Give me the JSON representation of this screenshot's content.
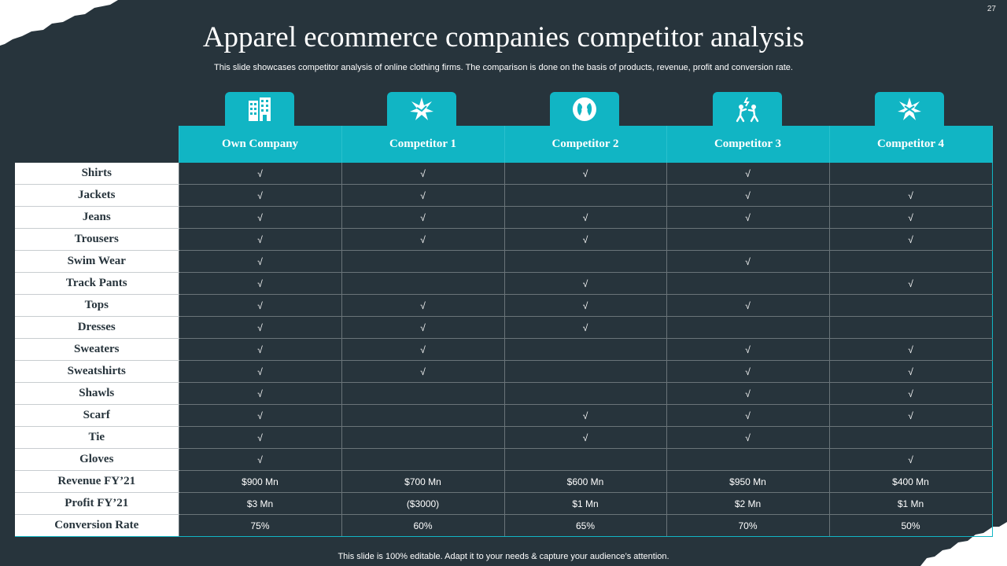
{
  "slide": {
    "number": "27",
    "title": "Apparel ecommerce companies competitor analysis",
    "subtitle": "This slide showcases competitor analysis of online clothing firms. The comparison is done on the basis of products, revenue, profit and conversion rate.",
    "footer": "This slide is 100% editable. Adapt it to your needs & capture your audience’s attention."
  },
  "colors": {
    "background": "#27343c",
    "accent": "#11b5c4",
    "label_bg": "#ffffff"
  },
  "columns": [
    {
      "label": "Own Company",
      "icon": "office-building-icon"
    },
    {
      "label": "Competitor 1",
      "icon": "starburst-icon"
    },
    {
      "label": "Competitor 2",
      "icon": "faces-icon"
    },
    {
      "label": "Competitor 3",
      "icon": "people-fighting-icon"
    },
    {
      "label": "Competitor 4",
      "icon": "starburst-icon"
    }
  ],
  "rows": [
    {
      "label": "Shirts",
      "cells": [
        "√",
        "√",
        "√",
        "√",
        ""
      ]
    },
    {
      "label": "Jackets",
      "cells": [
        "√",
        "√",
        "",
        "√",
        "√"
      ]
    },
    {
      "label": "Jeans",
      "cells": [
        "√",
        "√",
        "√",
        "√",
        "√"
      ]
    },
    {
      "label": "Trousers",
      "cells": [
        "√",
        "√",
        "√",
        "",
        "√"
      ]
    },
    {
      "label": "Swim Wear",
      "cells": [
        "√",
        "",
        "",
        "√",
        ""
      ]
    },
    {
      "label": "Track Pants",
      "cells": [
        "√",
        "",
        "√",
        "",
        "√"
      ]
    },
    {
      "label": "Tops",
      "cells": [
        "√",
        "√",
        "√",
        "√",
        ""
      ]
    },
    {
      "label": "Dresses",
      "cells": [
        "√",
        "√",
        "√",
        "",
        ""
      ]
    },
    {
      "label": "Sweaters",
      "cells": [
        "√",
        "√",
        "",
        "√",
        "√"
      ]
    },
    {
      "label": "Sweatshirts",
      "cells": [
        "√",
        "√",
        "",
        "√",
        "√"
      ]
    },
    {
      "label": "Shawls",
      "cells": [
        "√",
        "",
        "",
        "√",
        "√"
      ]
    },
    {
      "label": "Scarf",
      "cells": [
        "√",
        "",
        "√",
        "√",
        "√"
      ]
    },
    {
      "label": "Tie",
      "cells": [
        "√",
        "",
        "√",
        "√",
        ""
      ]
    },
    {
      "label": "Gloves",
      "cells": [
        "√",
        "",
        "",
        "",
        "√"
      ]
    },
    {
      "label": "Revenue FY’21",
      "cells": [
        "$900 Mn",
        "$700 Mn",
        "$600 Mn",
        "$950 Mn",
        "$400 Mn"
      ]
    },
    {
      "label": "Profit FY’21",
      "cells": [
        "$3 Mn",
        "($3000)",
        "$1 Mn",
        "$2 Mn",
        "$1 Mn"
      ]
    },
    {
      "label": "Conversion Rate",
      "cells": [
        "75%",
        "60%",
        "65%",
        "70%",
        "50%"
      ]
    }
  ]
}
